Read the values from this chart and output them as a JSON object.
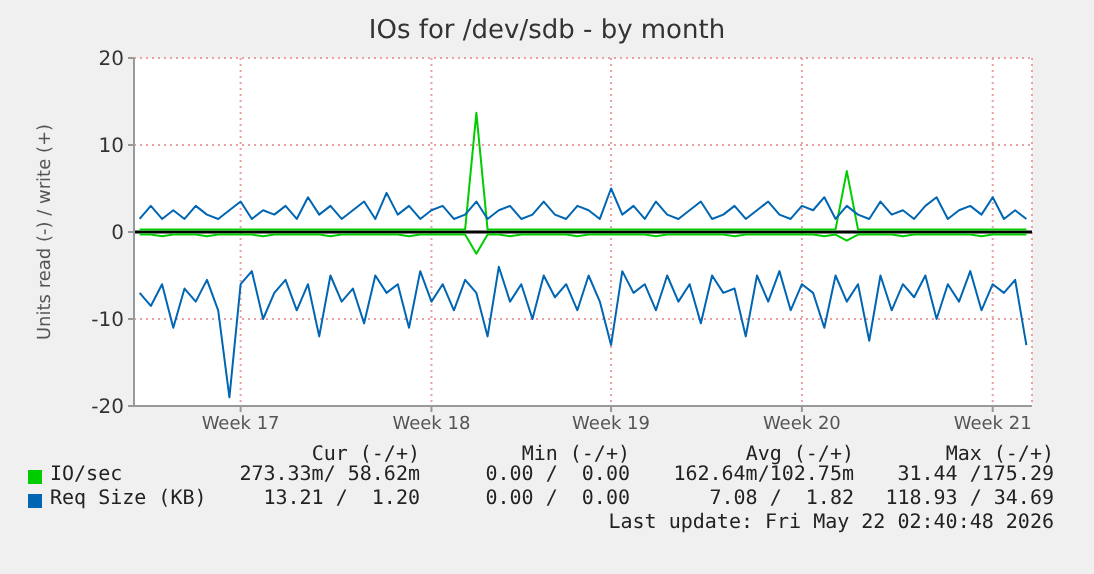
{
  "chart_data": {
    "type": "line",
    "title": "IOs for /dev/sdb - by month",
    "ylabel": "Units read (-) / write (+)",
    "categories": [
      null,
      null,
      null,
      null,
      null,
      null,
      null,
      null,
      null,
      "Week 17",
      null,
      null,
      null,
      null,
      null,
      null,
      null,
      null,
      null,
      null,
      null,
      null,
      null,
      null,
      null,
      null,
      "Week 18",
      null,
      null,
      null,
      null,
      null,
      null,
      null,
      null,
      null,
      null,
      null,
      null,
      null,
      null,
      null,
      "Week 19",
      null,
      null,
      null,
      null,
      null,
      null,
      null,
      null,
      null,
      null,
      null,
      null,
      null,
      null,
      null,
      null,
      "Week 20",
      null,
      null,
      null,
      null,
      null,
      null,
      null,
      null,
      null,
      null,
      null,
      null,
      null,
      null,
      null,
      null,
      "Week 21",
      null,
      null,
      null
    ],
    "series": [
      {
        "color": "#00cc00",
        "values": [
          -0.3,
          -0.3,
          -0.5,
          -0.3,
          -0.3,
          -0.3,
          -0.5,
          -0.3,
          -0.3,
          -0.3,
          -0.3,
          -0.5,
          -0.3,
          -0.3,
          -0.3,
          -0.3,
          -0.3,
          -0.5,
          -0.3,
          -0.3,
          -0.3,
          -0.3,
          -0.3,
          -0.3,
          -0.5,
          -0.3,
          -0.3,
          -0.3,
          -0.3,
          -0.3,
          -2.5,
          -0.3,
          -0.3,
          -0.5,
          -0.3,
          -0.3,
          -0.3,
          -0.3,
          -0.3,
          -0.5,
          -0.3,
          -0.3,
          -0.3,
          -0.3,
          -0.3,
          -0.3,
          -0.5,
          -0.3,
          -0.3,
          -0.3,
          -0.3,
          -0.3,
          -0.3,
          -0.5,
          -0.3,
          -0.3,
          -0.3,
          -0.3,
          -0.3,
          -0.3,
          -0.3,
          -0.5,
          -0.3,
          -1,
          -0.3,
          -0.3,
          -0.3,
          -0.3,
          -0.5,
          -0.3,
          -0.3,
          -0.3,
          -0.3,
          -0.3,
          -0.3,
          -0.5,
          -0.3,
          -0.3,
          -0.3,
          -0.3
        ]
      },
      {
        "name": "IO/sec",
        "color": "#00cc00",
        "values": [
          0.3,
          0.3,
          0.3,
          0.3,
          0.3,
          0.3,
          0.3,
          0.3,
          0.3,
          0.3,
          0.3,
          0.3,
          0.3,
          0.3,
          0.3,
          0.3,
          0.3,
          0.3,
          0.3,
          0.3,
          0.3,
          0.3,
          0.3,
          0.3,
          0.3,
          0.3,
          0.3,
          0.3,
          0.3,
          0.3,
          13.7,
          0.3,
          0.3,
          0.3,
          0.3,
          0.3,
          0.3,
          0.3,
          0.3,
          0.3,
          0.3,
          0.3,
          0.3,
          0.3,
          0.3,
          0.3,
          0.3,
          0.3,
          0.3,
          0.3,
          0.3,
          0.3,
          0.3,
          0.3,
          0.3,
          0.3,
          0.3,
          0.3,
          0.3,
          0.3,
          0.3,
          0.3,
          0.3,
          7,
          0.3,
          0.3,
          0.3,
          0.3,
          0.3,
          0.3,
          0.3,
          0.3,
          0.3,
          0.3,
          0.3,
          0.3,
          0.3,
          0.3,
          0.3,
          0.3
        ]
      },
      {
        "color": "#0066b3",
        "values": [
          -7,
          -8.5,
          -6,
          -11,
          -6.5,
          -8,
          -5.5,
          -9,
          -19,
          -6,
          -4.5,
          -10,
          -7,
          -5.5,
          -9,
          -6,
          -12,
          -5,
          -8,
          -6.5,
          -10.5,
          -5,
          -7,
          -6,
          -11,
          -4.5,
          -8,
          -6,
          -9,
          -5.5,
          -7,
          -12,
          -4,
          -8,
          -6,
          -10,
          -5,
          -7.5,
          -6,
          -9,
          -5,
          -8,
          -13,
          -4.5,
          -7,
          -6,
          -9,
          -5,
          -8,
          -6,
          -10.5,
          -5,
          -7,
          -6.5,
          -12,
          -5,
          -8,
          -4.5,
          -9,
          -6,
          -7,
          -11,
          -5,
          -8,
          -6,
          -12.5,
          -5,
          -9,
          -6,
          -7.5,
          -5,
          -10,
          -6,
          -8,
          -4.5,
          -9,
          -6,
          -7,
          -5.5,
          -13
        ]
      },
      {
        "name": "Req Size (KB)",
        "color": "#0066b3",
        "values": [
          1.5,
          3,
          1.5,
          2.5,
          1.5,
          3,
          2,
          1.5,
          2.5,
          3.5,
          1.5,
          2.5,
          2,
          3,
          1.5,
          4,
          2,
          3,
          1.5,
          2.5,
          3.5,
          1.5,
          4.5,
          2,
          3,
          1.5,
          2.5,
          3,
          1.5,
          2,
          3.5,
          1.5,
          2.5,
          3,
          1.5,
          2,
          3.5,
          2,
          1.5,
          3,
          2.5,
          1.5,
          5,
          2,
          3,
          1.5,
          3.5,
          2,
          1.5,
          2.5,
          3.5,
          1.5,
          2,
          3,
          1.5,
          2.5,
          3.5,
          2,
          1.5,
          3,
          2.5,
          4,
          1.5,
          3,
          2,
          1.5,
          3.5,
          2,
          2.5,
          1.5,
          3,
          4,
          1.5,
          2.5,
          3,
          2,
          4,
          1.5,
          2.5,
          1.5
        ]
      }
    ],
    "ylim": [
      -20,
      20
    ],
    "yticks": [
      -20,
      -10,
      0,
      10,
      20
    ],
    "ref_lines": [
      {
        "axis": "y",
        "value": 0,
        "color": "#000000"
      }
    ],
    "grid": true,
    "legend": "bottom",
    "marker": "none",
    "line_style": "solid",
    "annotations": [
      "Cur (-/+)",
      "Min (-/+)",
      "Avg (-/+)",
      "Max (-/+)",
      "273.33m/ 58.62m",
      "0.00 /  0.00",
      "162.64m/102.75m",
      "31.44 /175.29",
      "13.21 /  1.20",
      "0.00 /  0.00",
      "7.08 /  1.82",
      "118.93 / 34.69",
      "Last update: Fri May 22 02:40:48 2026"
    ]
  }
}
